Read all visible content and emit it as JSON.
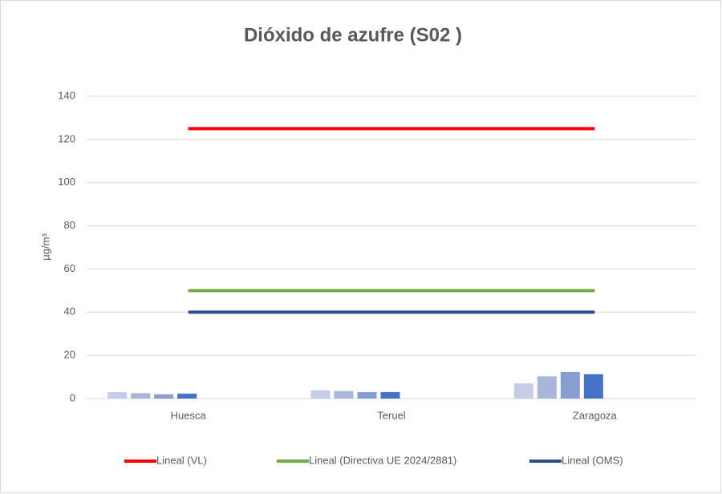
{
  "chart_data": {
    "type": "bar",
    "title": "Dióxido de azufre (S02 )",
    "y_label": "µg/m³",
    "categories": [
      "Huesca",
      "Teruel",
      "Zaragoza"
    ],
    "series": [
      {
        "color": "#c5cde8",
        "values": [
          3,
          3.8,
          7
        ]
      },
      {
        "color": "#a9b6dc",
        "values": [
          2.5,
          3.5,
          10.3
        ]
      },
      {
        "color": "#8a9dd0",
        "values": [
          2,
          3,
          12.3
        ]
      },
      {
        "color": "#4472c4",
        "values": [
          2.3,
          3,
          11.3
        ]
      }
    ],
    "lines": [
      {
        "name": "Lineal (VL)",
        "color": "#ff0000",
        "values": [
          125,
          125,
          125
        ]
      },
      {
        "name": "Lineal (Directiva UE 2024/2881)",
        "color": "#70ad47",
        "values": [
          50,
          50,
          50
        ]
      },
      {
        "name": "Lineal (OMS)",
        "color": "#2f4b8c",
        "values": [
          40,
          40,
          40
        ]
      }
    ],
    "ylim": [
      0,
      140
    ],
    "yticks": [
      0,
      20,
      40,
      60,
      80,
      100,
      120,
      140
    ],
    "grid": true,
    "legend": "bottom"
  }
}
